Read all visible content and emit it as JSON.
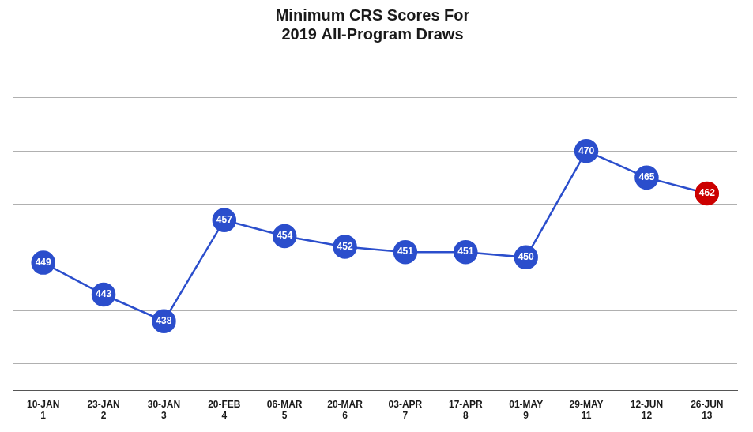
{
  "chart_data": {
    "type": "line",
    "title": "Minimum CRS Scores For\n2019 All-Program Draws",
    "categories": [
      [
        "10-JAN",
        "1"
      ],
      [
        "23-JAN",
        "2"
      ],
      [
        "30-JAN",
        "3"
      ],
      [
        "20-FEB",
        "4"
      ],
      [
        "06-MAR",
        "5"
      ],
      [
        "20-MAR",
        "6"
      ],
      [
        "03-APR",
        "7"
      ],
      [
        "17-APR",
        "8"
      ],
      [
        "01-MAY",
        "9"
      ],
      [
        "29-MAY",
        "11"
      ],
      [
        "12-JUN",
        "12"
      ],
      [
        "26-JUN",
        "13"
      ]
    ],
    "values": [
      449,
      443,
      438,
      457,
      454,
      452,
      451,
      451,
      450,
      470,
      465,
      462
    ],
    "color": "#2B4ECC",
    "colors": [
      "#2B4ECC",
      "#2B4ECC",
      "#2B4ECC",
      "#2B4ECC",
      "#2B4ECC",
      "#2B4ECC",
      "#2B4ECC",
      "#2B4ECC",
      "#2B4ECC",
      "#2B4ECC",
      "#2B4ECC",
      "#CC0000"
    ],
    "ylim": [
      425,
      488
    ],
    "yticks": [
      430,
      440,
      450,
      460,
      470,
      480
    ],
    "grid": true,
    "tick_labels": "x",
    "data_labels": true,
    "marker": "circle"
  }
}
